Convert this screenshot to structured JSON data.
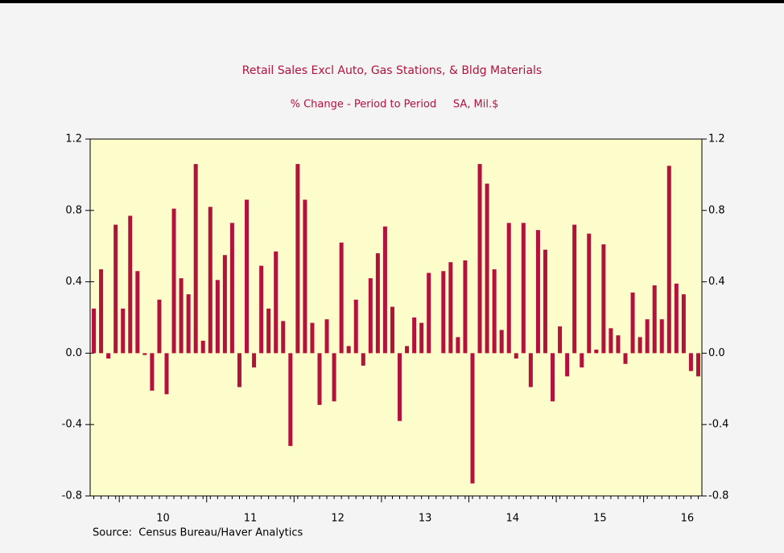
{
  "chart_data": {
    "type": "bar",
    "title": "Retail Sales Excl Auto, Gas Stations, & Bldg Materials",
    "subtitle": "% Change - Period to Period     SA, Mil.$",
    "source": "Source:  Census Bureau/Haver Analytics",
    "color": "#b3123c",
    "values": [
      0.25,
      0.47,
      -0.03,
      0.72,
      0.25,
      0.77,
      0.46,
      -0.01,
      -0.21,
      0.3,
      -0.23,
      0.81,
      0.42,
      0.33,
      1.06,
      0.07,
      0.82,
      0.41,
      0.55,
      0.73,
      -0.19,
      0.86,
      -0.08,
      0.49,
      0.25,
      0.57,
      0.18,
      -0.52,
      1.06,
      0.86,
      0.17,
      -0.29,
      0.19,
      -0.27,
      0.62,
      0.04,
      0.3,
      -0.07,
      0.42,
      0.56,
      0.71,
      0.26,
      -0.38,
      0.04,
      0.2,
      0.17,
      0.45,
      0.0,
      0.46,
      0.51,
      0.09,
      0.52,
      -0.73,
      1.06,
      0.95,
      0.47,
      0.13,
      0.73,
      -0.03,
      0.73,
      -0.19,
      0.69,
      0.58,
      -0.27,
      0.15,
      -0.13,
      0.72,
      -0.08,
      0.67,
      0.02,
      0.61,
      0.14,
      0.1,
      -0.06,
      0.34,
      0.09,
      0.19,
      0.38,
      0.19,
      1.05,
      0.39,
      0.33,
      -0.1,
      -0.13
    ],
    "xticks": [
      {
        "value": 9.5,
        "label": "10"
      },
      {
        "value": 21.5,
        "label": "11"
      },
      {
        "value": 33.5,
        "label": "12"
      },
      {
        "value": 45.5,
        "label": "13"
      },
      {
        "value": 57.5,
        "label": "14"
      },
      {
        "value": 69.5,
        "label": "15"
      },
      {
        "value": 81.5,
        "label": "16"
      }
    ],
    "ylim": [
      -0.8,
      1.2
    ],
    "yticks": [
      -0.8,
      -0.4,
      {
        "value": 0,
        "label": "0.0"
      },
      0.4,
      0.8,
      1.2
    ]
  }
}
